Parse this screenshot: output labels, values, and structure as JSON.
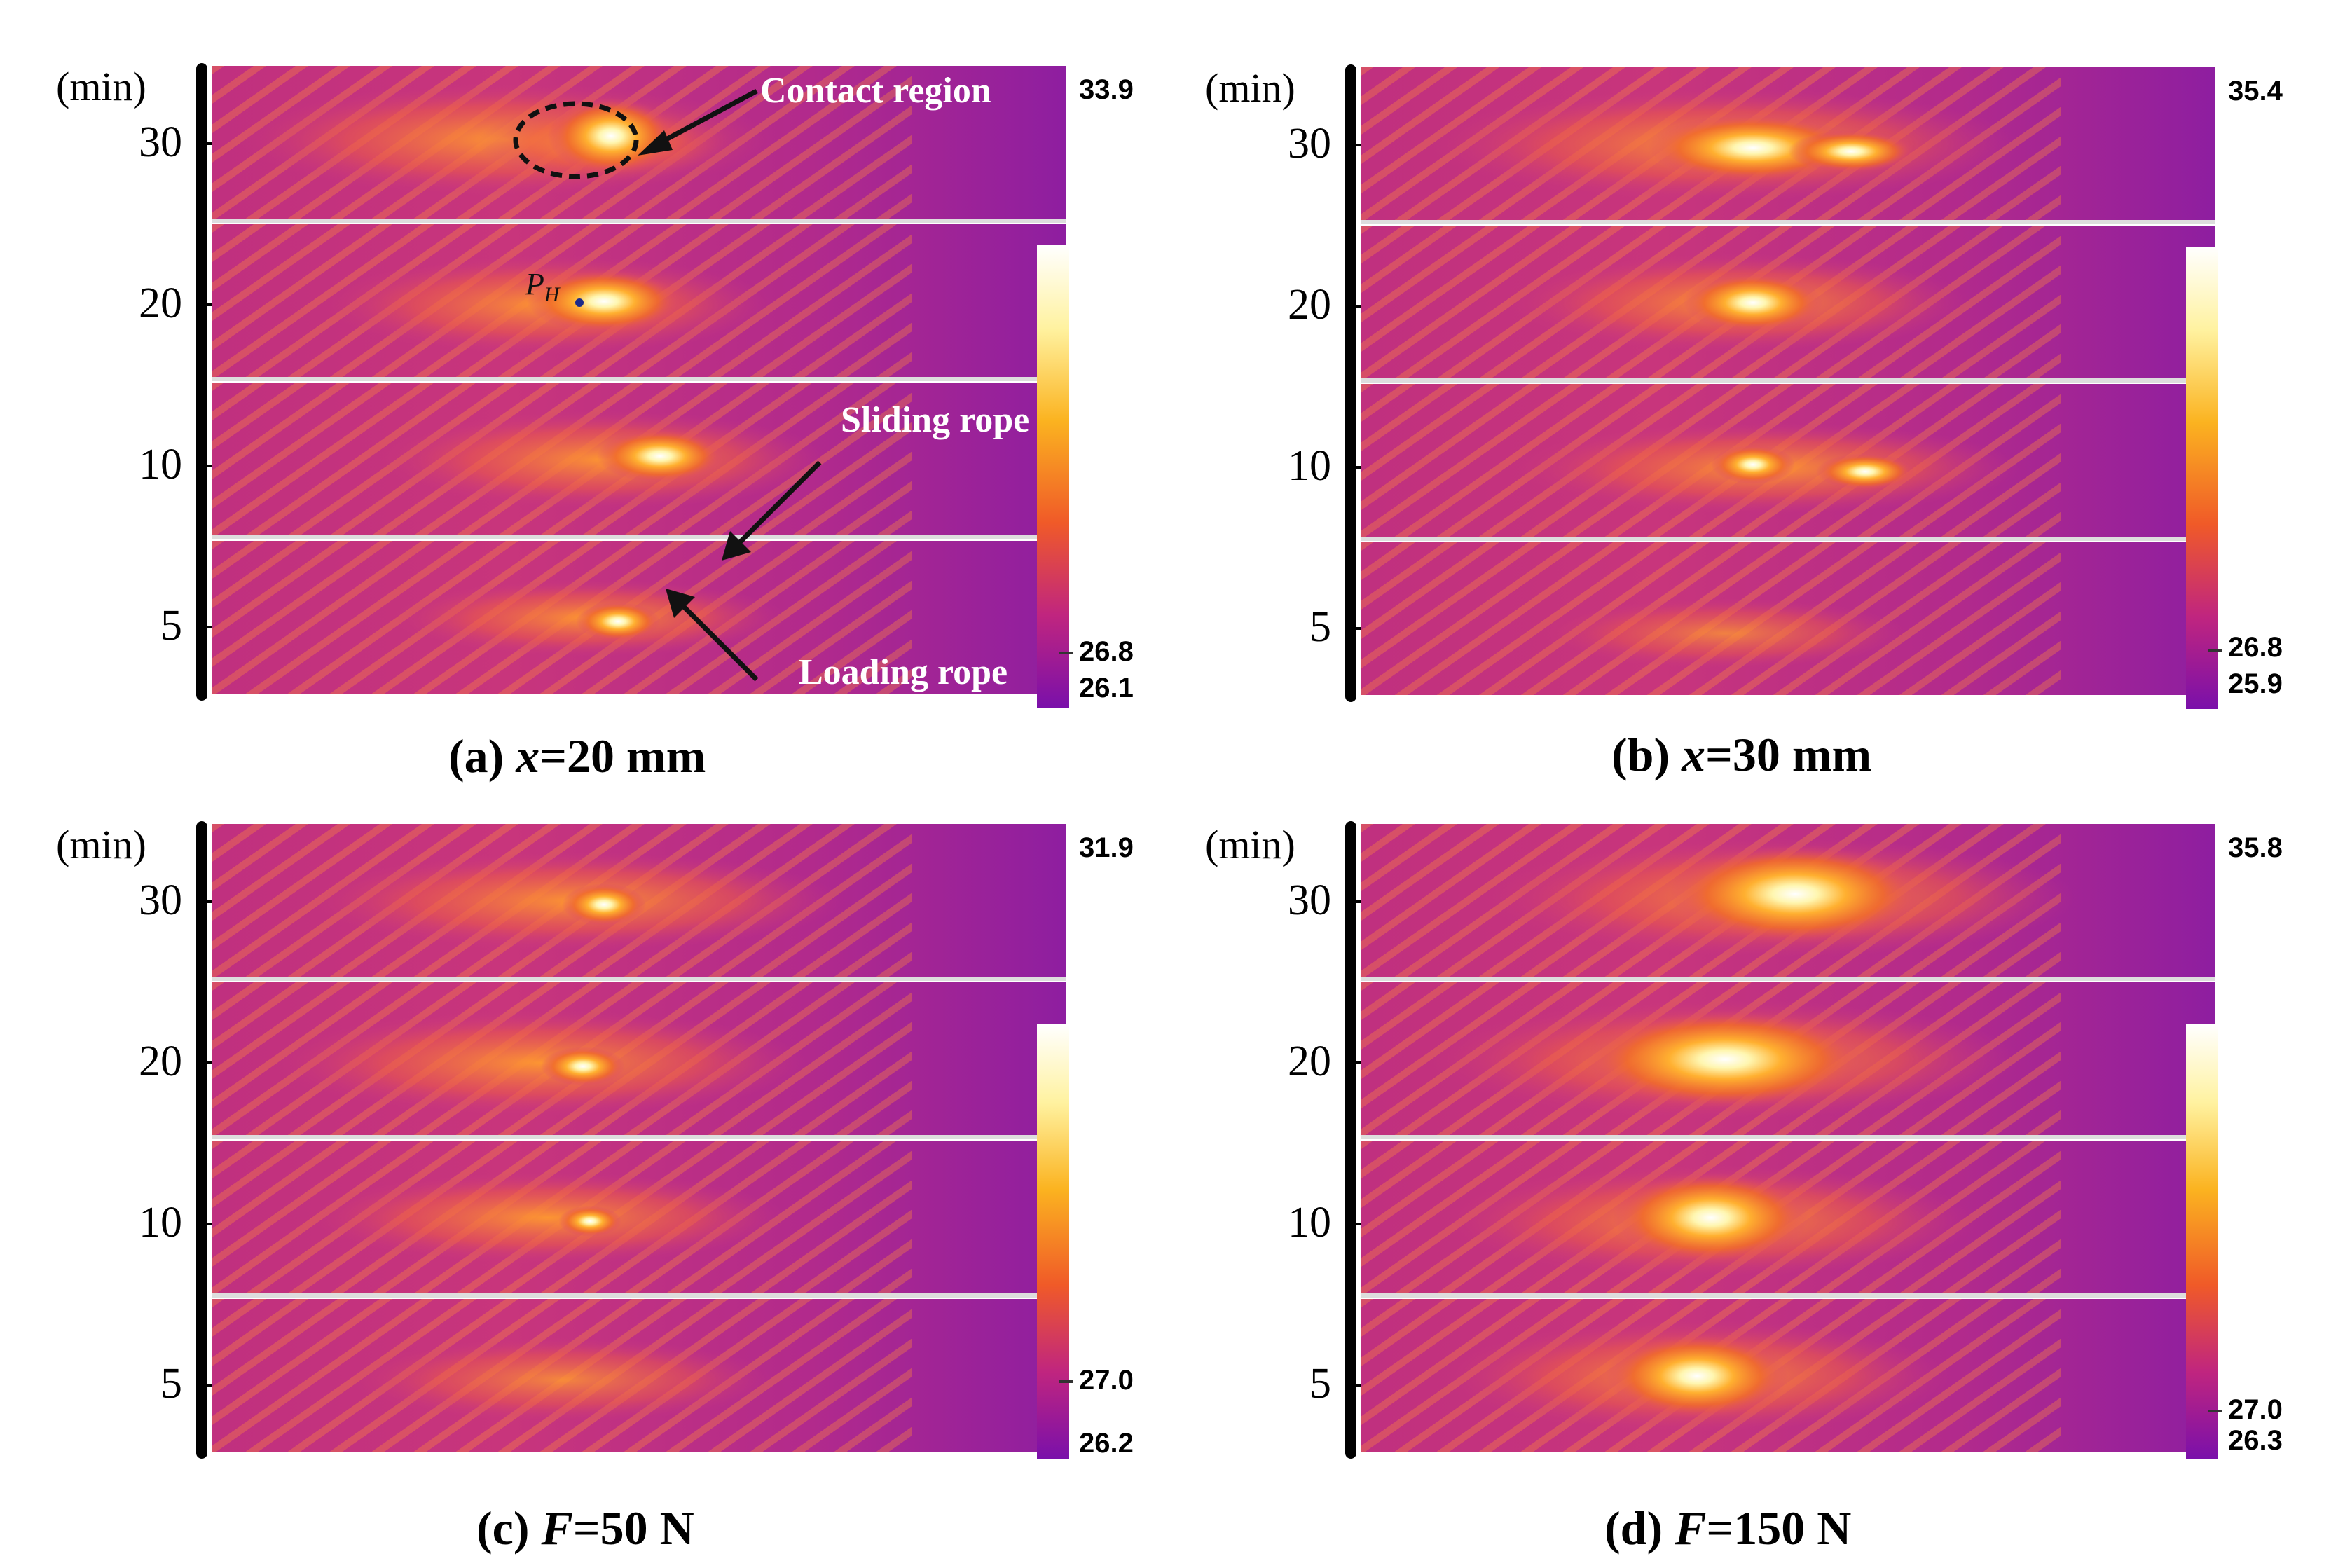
{
  "time_unit": "(min)",
  "time_ticks": [
    "30",
    "20",
    "10",
    "5"
  ],
  "colors": {
    "low": "#7b11a8",
    "mid": "#c02a8a",
    "warm": "#f07020",
    "hot": "#ffe860",
    "max": "#ffffff"
  },
  "panels": [
    {
      "id": "a",
      "label": "(a)",
      "var": "x",
      "value": "=20 mm",
      "cbar_max": "33.9",
      "cbar_mid": "26.8",
      "cbar_min": "26.1"
    },
    {
      "id": "b",
      "label": "(b)",
      "var": "x",
      "value": "=30 mm",
      "cbar_max": "35.4",
      "cbar_mid": "26.8",
      "cbar_min": "25.9"
    },
    {
      "id": "c",
      "label": "(c)",
      "var": "F",
      "value": "=50 N",
      "cbar_max": "31.9",
      "cbar_mid": "27.0",
      "cbar_min": "26.2"
    },
    {
      "id": "d",
      "label": "(d)",
      "var": "F",
      "value": "=150 N",
      "cbar_max": "35.8",
      "cbar_mid": "27.0",
      "cbar_min": "26.3"
    }
  ],
  "annotations": {
    "contact_region": "Contact region",
    "sliding_rope": "Sliding rope",
    "loading_rope": "Loading rope",
    "point_label": "P",
    "point_sub": "H"
  }
}
